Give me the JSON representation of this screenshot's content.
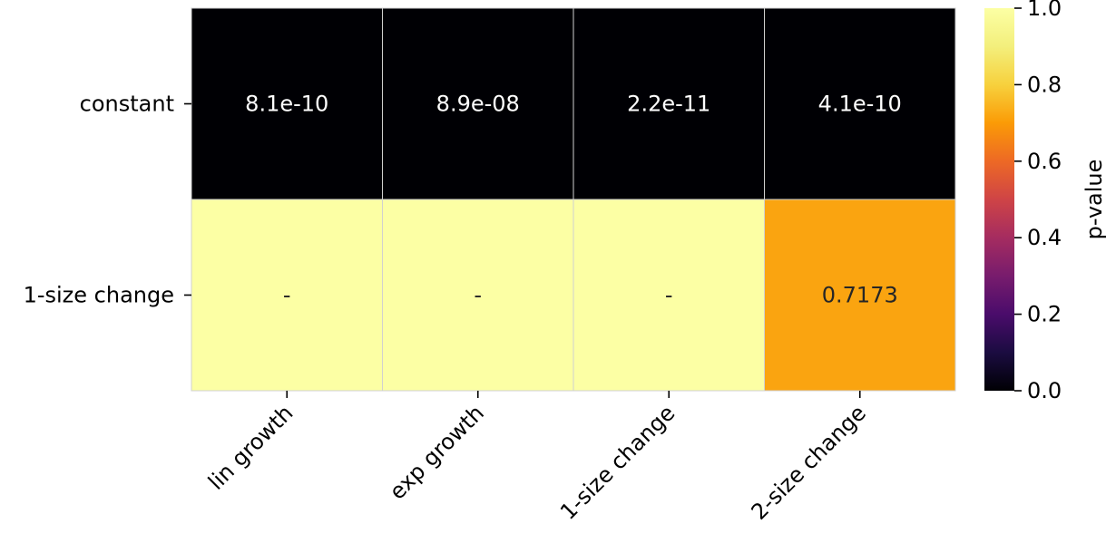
{
  "chart_data": {
    "type": "heatmap",
    "title": "",
    "xlabel": "",
    "ylabel": "",
    "rows": [
      "constant",
      "1-size change"
    ],
    "columns": [
      "lin growth",
      "exp growth",
      "1-size change",
      "2-size change"
    ],
    "values": [
      [
        8.1e-10,
        8.9e-08,
        2.2e-11,
        4.1e-10
      ],
      [
        1.0,
        1.0,
        1.0,
        0.7173
      ]
    ],
    "cell_labels": [
      [
        "8.1e-10",
        "8.9e-08",
        "2.2e-11",
        "4.1e-10"
      ],
      [
        "-",
        "-",
        "-",
        "0.7173"
      ]
    ],
    "colormap": "inferno",
    "vmin": 0.0,
    "vmax": 1.0,
    "grid_line_color": "#d0d0d0",
    "colorbar": {
      "label": "p-value",
      "ticks": [
        "0.0",
        "0.2",
        "0.4",
        "0.6",
        "0.8",
        "1.0"
      ],
      "tick_values": [
        0.0,
        0.2,
        0.4,
        0.6,
        0.8,
        1.0
      ]
    }
  }
}
